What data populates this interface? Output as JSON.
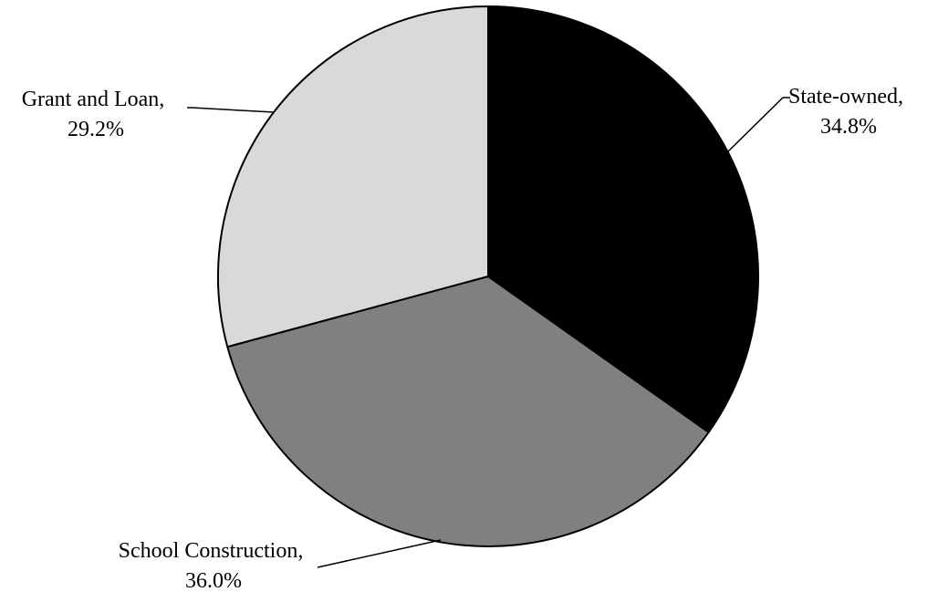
{
  "chart_data": {
    "type": "pie",
    "title": "",
    "slices": [
      {
        "label": "State-owned",
        "value": 34.8,
        "value_label": "34.8%",
        "color": "#000000"
      },
      {
        "label": "School Construction",
        "value": 36.0,
        "value_label": "36.0%",
        "color": "#808080"
      },
      {
        "label": "Grant and Loan",
        "value": 29.2,
        "value_label": "29.2%",
        "color": "#d9d9d9"
      }
    ],
    "start_angle": "12 o'clock",
    "direction": "clockwise",
    "legend": "none",
    "label_style": "outside with leader lines"
  }
}
